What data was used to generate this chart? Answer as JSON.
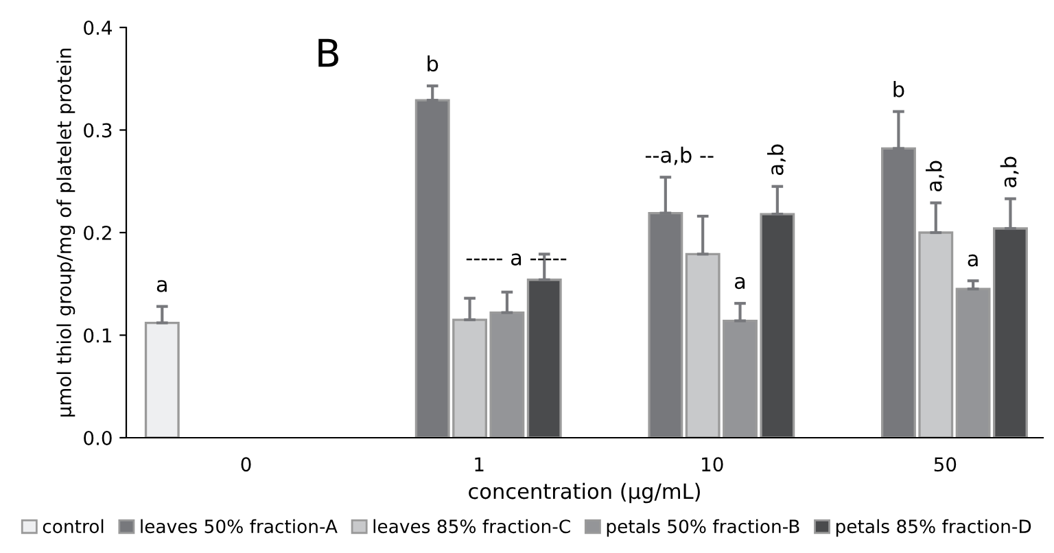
{
  "chart_data": {
    "type": "bar",
    "categories": [
      "0",
      "1",
      "10",
      "50"
    ],
    "xlabel": "concentration (µg/mL)",
    "ylabel": "µmol thiol group/mg of platelet protein",
    "ylim": [
      0,
      0.4
    ],
    "yticks": [
      {
        "value": 0,
        "label": "0.0"
      },
      {
        "value": 0.1,
        "label": "0.1"
      },
      {
        "value": 0.2,
        "label": "0.2"
      },
      {
        "value": 0.3,
        "label": "0.3"
      },
      {
        "value": 0.4,
        "label": "0.4"
      }
    ],
    "series": [
      {
        "name": "control",
        "color": "#eeeff1",
        "values": [
          0.112,
          null,
          null,
          null
        ],
        "errors": [
          0.016,
          null,
          null,
          null
        ]
      },
      {
        "name": "leaves 50% fraction-A",
        "color": "#77787c",
        "values": [
          null,
          0.329,
          0.219,
          0.282
        ],
        "errors": [
          null,
          0.014,
          0.035,
          0.036
        ]
      },
      {
        "name": "leaves 85% fraction-C",
        "color": "#c8c9cb",
        "values": [
          null,
          0.115,
          0.179,
          0.2
        ],
        "errors": [
          null,
          0.021,
          0.037,
          0.029
        ]
      },
      {
        "name": "petals 50% fraction-B",
        "color": "#949598",
        "values": [
          null,
          0.122,
          0.114,
          0.145
        ],
        "errors": [
          null,
          0.02,
          0.017,
          0.008
        ]
      },
      {
        "name": "petals 85% fraction-D",
        "color": "#4a4b4d",
        "values": [
          null,
          0.154,
          0.218,
          0.204
        ],
        "errors": [
          null,
          0.025,
          0.027,
          0.029
        ]
      }
    ],
    "annotations": [
      "B",
      "a",
      "b",
      "----- a -----",
      "--a,b --",
      "a",
      "a,b",
      "b",
      "a,b",
      "a",
      "a,b"
    ],
    "grid": false,
    "legend": "bottom"
  }
}
